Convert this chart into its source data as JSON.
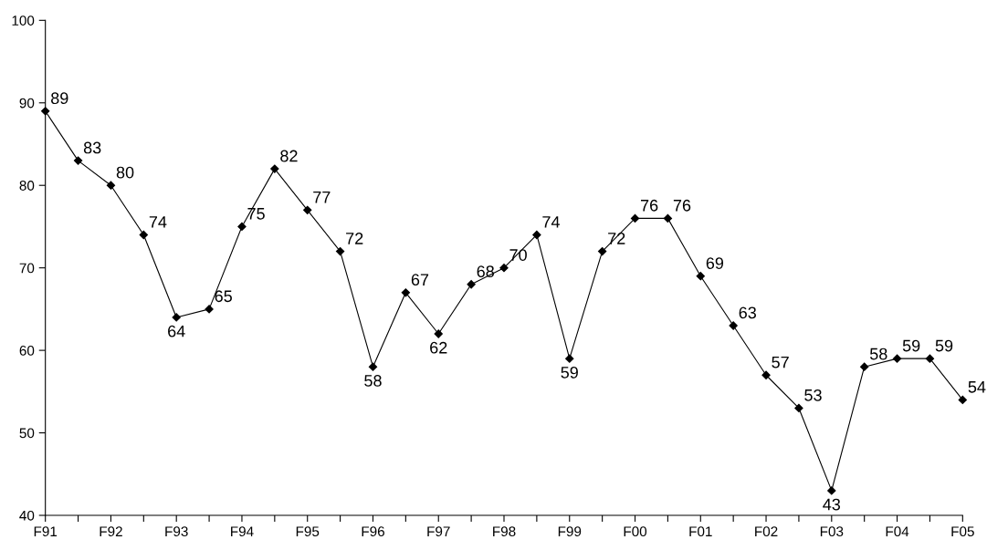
{
  "chart_data": {
    "type": "line",
    "categories": [
      "F91",
      null,
      "F92",
      null,
      "F93",
      null,
      "F94",
      null,
      "F95",
      null,
      "F96",
      null,
      "F97",
      null,
      "F98",
      null,
      "F99",
      null,
      "F00",
      null,
      "F01",
      null,
      "F02",
      null,
      "F03",
      null,
      "F04",
      null,
      "F05"
    ],
    "series": [
      {
        "color": "#000000",
        "values": [
          89,
          83,
          80,
          74,
          64,
          65,
          75,
          82,
          77,
          72,
          58,
          67,
          62,
          68,
          70,
          74,
          59,
          72,
          76,
          76,
          69,
          63,
          57,
          53,
          43,
          58,
          59,
          59,
          54
        ]
      }
    ],
    "ylim": [
      40,
      100
    ],
    "yticks": [
      40,
      50,
      60,
      70,
      80,
      90,
      100
    ],
    "marker": "diamond",
    "line_style": "solid",
    "data_labels": true,
    "grid": false,
    "legend": false
  }
}
